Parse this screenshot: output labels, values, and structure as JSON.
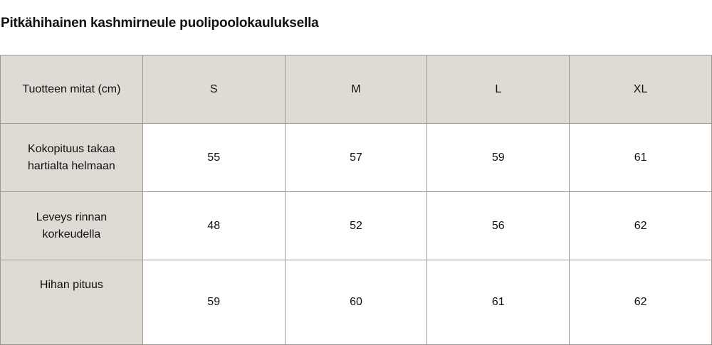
{
  "title": "Pitkähihainen kashmirneule puolipoolokauluksella",
  "table": {
    "header": [
      "Tuotteen mitat (cm)",
      "S",
      "M",
      "L",
      "XL"
    ],
    "rows": [
      {
        "label": "Kokopituus takaa hartialta helmaan",
        "values": [
          "55",
          "57",
          "59",
          "61"
        ]
      },
      {
        "label": "Leveys rinnan korkeudella",
        "values": [
          "48",
          "52",
          "56",
          "62"
        ]
      },
      {
        "label": "Hihan pituus",
        "values": [
          "59",
          "60",
          "61",
          "62"
        ]
      }
    ]
  },
  "colors": {
    "header_bg": "#dedbd5",
    "border": "#9d9992"
  }
}
